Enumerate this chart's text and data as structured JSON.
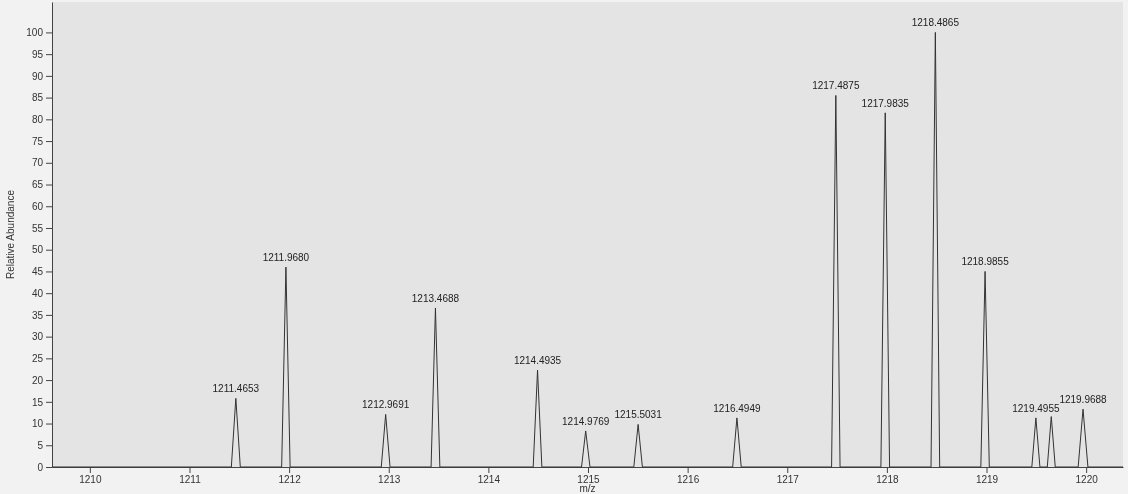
{
  "chart_data": {
    "type": "line",
    "xlabel": "m/z",
    "ylabel": "Relative Abundance",
    "xlim": [
      1209.62,
      1220.37
    ],
    "xticks": [
      1210,
      1211,
      1212,
      1213,
      1214,
      1215,
      1216,
      1217,
      1218,
      1219,
      1220
    ],
    "ylim": [
      0,
      107
    ],
    "yticks": [
      0,
      5,
      10,
      15,
      20,
      25,
      30,
      35,
      40,
      45,
      50,
      55,
      60,
      65,
      70,
      75,
      80,
      85,
      90,
      95,
      100
    ],
    "grid": false,
    "marker": "none",
    "line_style": "solid",
    "series": [
      {
        "color": "#333333",
        "x": [
          1209.62,
          1211.42,
          1211.4653,
          1211.51,
          1211.925,
          1211.968,
          1212.01,
          1212.925,
          1212.9691,
          1213.013,
          1213.425,
          1213.4688,
          1213.513,
          1214.45,
          1214.4935,
          1214.537,
          1214.935,
          1214.9769,
          1215.02,
          1215.46,
          1215.5031,
          1215.546,
          1216.452,
          1216.4949,
          1216.538,
          1217.445,
          1217.4875,
          1217.53,
          1217.94,
          1217.9835,
          1218.027,
          1218.443,
          1218.4865,
          1218.53,
          1218.943,
          1218.9855,
          1219.028,
          1219.455,
          1219.4955,
          1219.536,
          1219.61,
          1219.65,
          1219.69,
          1219.92,
          1219.9688,
          1220.018,
          1220.37
        ],
        "values": [
          0,
          0,
          15.8,
          0,
          0,
          46,
          0,
          0,
          12.1,
          0,
          0,
          36.6,
          0,
          0,
          22.3,
          0,
          0,
          8.3,
          0,
          0,
          9.8,
          0,
          0,
          11.3,
          0,
          0,
          85.5,
          0,
          0,
          81.5,
          0,
          0,
          100,
          0,
          0,
          45,
          0,
          0,
          11.3,
          0,
          0,
          11.6,
          0,
          0,
          13.3,
          0,
          0
        ]
      }
    ],
    "annotations": [
      {
        "text": "1211.4653",
        "x": 1211.4653,
        "y": 15.8
      },
      {
        "text": "1211.9680",
        "x": 1211.968,
        "y": 46
      },
      {
        "text": "1212.9691",
        "x": 1212.9691,
        "y": 12.1
      },
      {
        "text": "1213.4688",
        "x": 1213.4688,
        "y": 36.6
      },
      {
        "text": "1214.4935",
        "x": 1214.4935,
        "y": 22.3
      },
      {
        "text": "1214.9769",
        "x": 1214.9769,
        "y": 8.3
      },
      {
        "text": "1215.5031",
        "x": 1215.5031,
        "y": 9.8
      },
      {
        "text": "1216.4949",
        "x": 1216.4949,
        "y": 11.3
      },
      {
        "text": "1217.4875",
        "x": 1217.4875,
        "y": 85.5
      },
      {
        "text": "1217.9835",
        "x": 1217.9835,
        "y": 81.5
      },
      {
        "text": "1218.4865",
        "x": 1218.4865,
        "y": 100
      },
      {
        "text": "1218.9855",
        "x": 1218.9855,
        "y": 45
      },
      {
        "text": "1219.4955",
        "x": 1219.4955,
        "y": 11.3
      },
      {
        "text": "1219.9688",
        "x": 1219.9688,
        "y": 13.3
      }
    ]
  }
}
